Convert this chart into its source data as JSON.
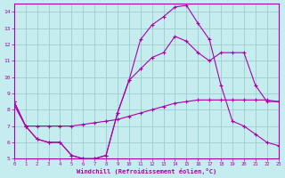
{
  "xlabel": "Windchill (Refroidissement éolien,°C)",
  "xlim": [
    0,
    23
  ],
  "ylim": [
    5,
    14.5
  ],
  "yticks": [
    5,
    6,
    7,
    8,
    9,
    10,
    11,
    12,
    13,
    14
  ],
  "xticks": [
    0,
    1,
    2,
    3,
    4,
    5,
    6,
    7,
    8,
    9,
    10,
    11,
    12,
    13,
    14,
    15,
    16,
    17,
    18,
    19,
    20,
    21,
    22,
    23
  ],
  "bg_color": "#c5ecee",
  "grid_color": "#a0ccce",
  "line_color": "#aa00aa",
  "line1_y": [
    8.5,
    7.0,
    6.2,
    6.0,
    6.0,
    5.2,
    5.0,
    5.0,
    5.2,
    7.8,
    9.8,
    12.3,
    13.2,
    13.7,
    14.3,
    14.4,
    13.3,
    12.3,
    9.5,
    7.3,
    7.0,
    6.5,
    6.0,
    5.8
  ],
  "line2_y": [
    8.5,
    7.0,
    6.2,
    6.0,
    6.0,
    5.2,
    5.0,
    5.0,
    5.2,
    7.8,
    9.8,
    10.5,
    11.2,
    11.5,
    12.5,
    12.2,
    11.5,
    11.0,
    11.5,
    11.5,
    11.5,
    9.5,
    8.5,
    8.5
  ],
  "line3_y": [
    8.3,
    7.0,
    7.0,
    7.0,
    7.0,
    7.0,
    7.1,
    7.2,
    7.3,
    7.4,
    7.6,
    7.8,
    8.0,
    8.2,
    8.4,
    8.5,
    8.6,
    8.6,
    8.6,
    8.6,
    8.6,
    8.6,
    8.6,
    8.5
  ]
}
